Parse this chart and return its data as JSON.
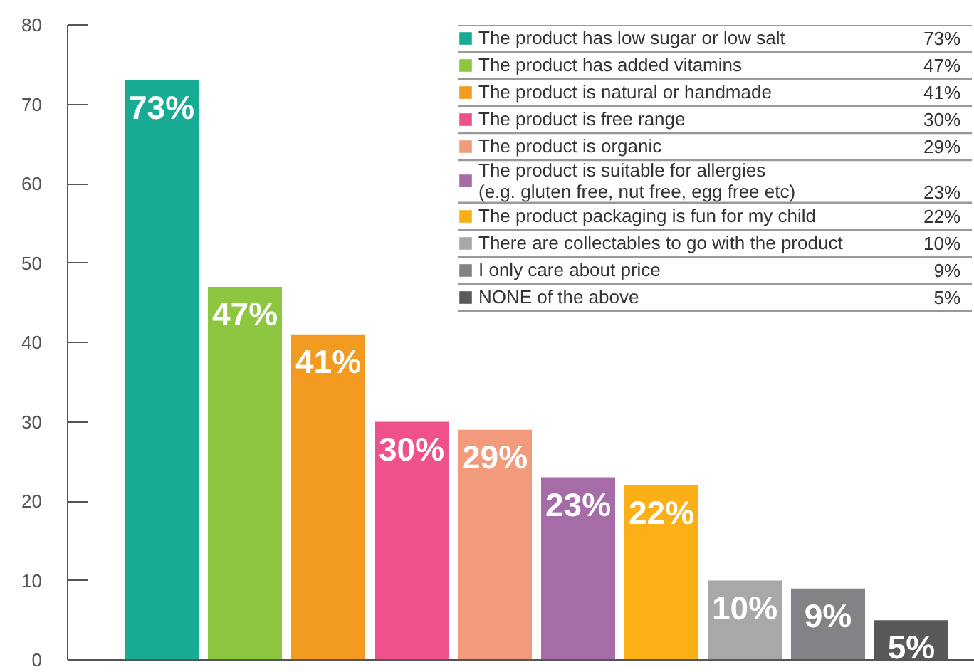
{
  "chart_data": {
    "type": "bar",
    "categories": [
      null
    ],
    "series": [
      {
        "name": "The product has low sugar or low salt",
        "color": "#18ab94",
        "values": [
          73
        ],
        "value_labels": [
          "73%"
        ]
      },
      {
        "name": "The product has added vitamins",
        "color": "#8dc63f",
        "values": [
          47
        ],
        "value_labels": [
          "47%"
        ]
      },
      {
        "name": "The product is natural or handmade",
        "color": "#f39a21",
        "values": [
          41
        ],
        "value_labels": [
          "41%"
        ]
      },
      {
        "name": "The product is free range",
        "color": "#ef528b",
        "values": [
          30
        ],
        "value_labels": [
          "30%"
        ]
      },
      {
        "name": "The product is organic",
        "color": "#f29b7c",
        "values": [
          29
        ],
        "value_labels": [
          "29%"
        ]
      },
      {
        "name": "The product is suitable for allergies\n(e.g. gluten free, nut free, egg free etc)",
        "color": "#a56ca7",
        "values": [
          23
        ],
        "value_labels": [
          "23%"
        ]
      },
      {
        "name": "The product packaging is fun for my child",
        "color": "#fbb017",
        "values": [
          22
        ],
        "value_labels": [
          "22%"
        ]
      },
      {
        "name": "There are collectables to go with the product",
        "color": "#a7a8aa",
        "values": [
          10
        ],
        "value_labels": [
          "10%"
        ]
      },
      {
        "name": "I only care about price",
        "color": "#828386",
        "values": [
          9
        ],
        "value_labels": [
          "9%"
        ]
      },
      {
        "name": "NONE of the above",
        "color": "#58595b",
        "values": [
          5
        ],
        "value_labels": [
          "5%"
        ]
      }
    ],
    "ylim": [
      0,
      80
    ],
    "yticks": [
      0,
      10,
      20,
      30,
      40,
      50,
      60,
      70,
      80
    ],
    "tick_labels": "y",
    "grid": false,
    "legend": "top right"
  }
}
